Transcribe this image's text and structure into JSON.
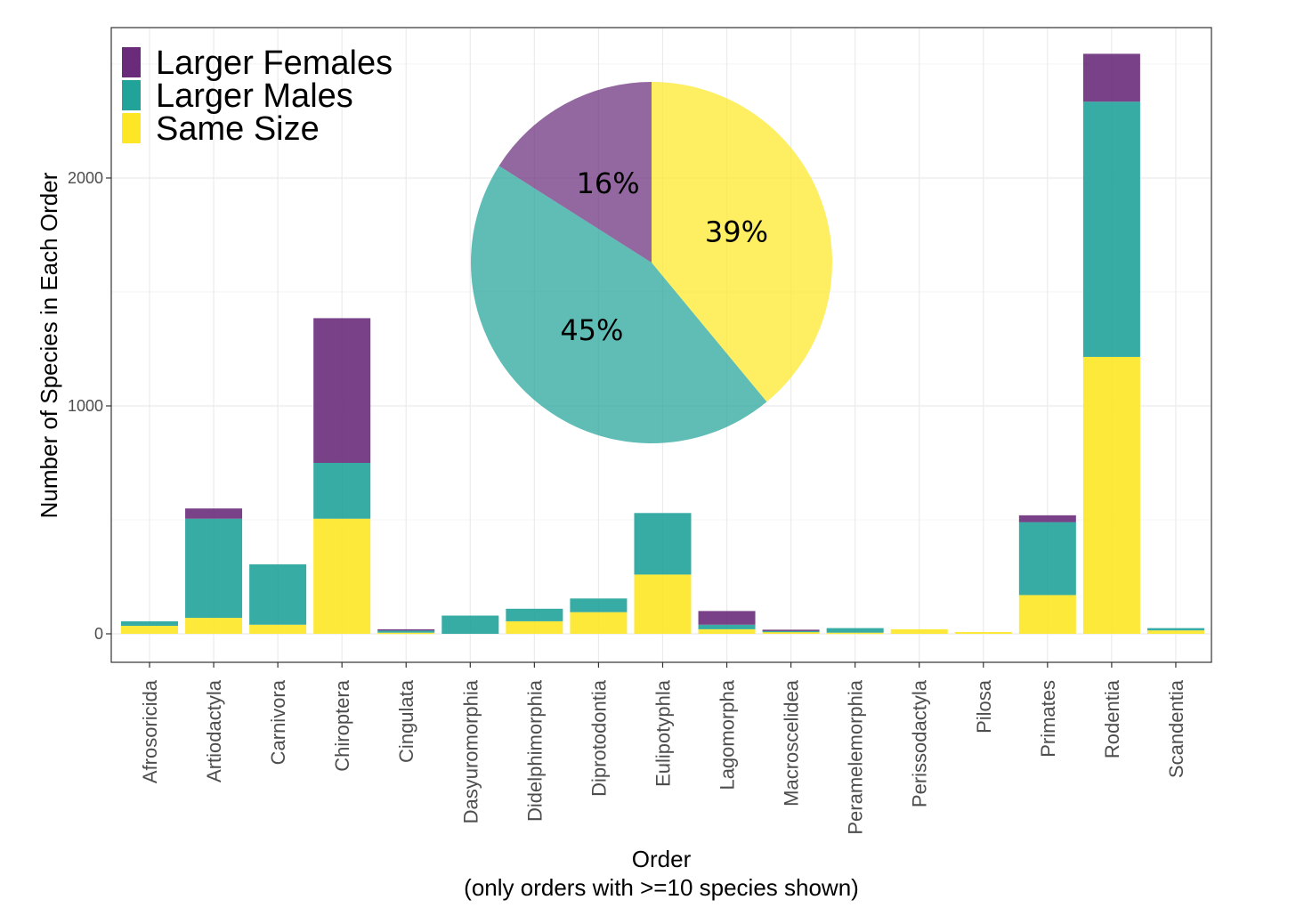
{
  "chart_data": [
    {
      "type": "bar",
      "stacked": true,
      "xlabel": "Order",
      "xlabel_sub": "(only orders with >=10 species shown)",
      "ylabel": "Number of Species in Each Order",
      "ylim": [
        -125,
        2660
      ],
      "yticks": [
        0,
        1000,
        2000
      ],
      "grid": true,
      "legend_position": "top-left",
      "categories": [
        "Afrosoricida",
        "Artiodactyla",
        "Carnivora",
        "Chiroptera",
        "Cingulata",
        "Dasyuromorphia",
        "Didelphimorphia",
        "Diprotodontia",
        "Eulipotyphla",
        "Lagomorpha",
        "Macroscelidea",
        "Peramelemorphia",
        "Perissodactyla",
        "Pilosa",
        "Primates",
        "Rodentia",
        "Scandentia"
      ],
      "series": [
        {
          "name": "Same Size",
          "color": "#FDE725",
          "values": [
            35,
            70,
            40,
            505,
            5,
            0,
            55,
            95,
            260,
            20,
            8,
            5,
            20,
            8,
            170,
            1215,
            15
          ]
        },
        {
          "name": "Larger Males",
          "color": "#21A39A",
          "values": [
            20,
            435,
            265,
            245,
            10,
            80,
            55,
            60,
            270,
            20,
            5,
            20,
            0,
            0,
            320,
            1120,
            10
          ]
        },
        {
          "name": "Larger Females",
          "color": "#6A2C7A",
          "values": [
            0,
            45,
            0,
            635,
            5,
            0,
            0,
            0,
            0,
            60,
            5,
            0,
            0,
            0,
            30,
            210,
            0
          ]
        }
      ]
    },
    {
      "type": "pie",
      "slices": [
        {
          "name": "Same Size",
          "value": 39,
          "label": "39%",
          "color": "#FDE725"
        },
        {
          "name": "Larger Males",
          "value": 45,
          "label": "45%",
          "color": "#21A39A"
        },
        {
          "name": "Larger Females",
          "value": 16,
          "label": "16%",
          "color": "#6A2C7A"
        }
      ]
    }
  ]
}
